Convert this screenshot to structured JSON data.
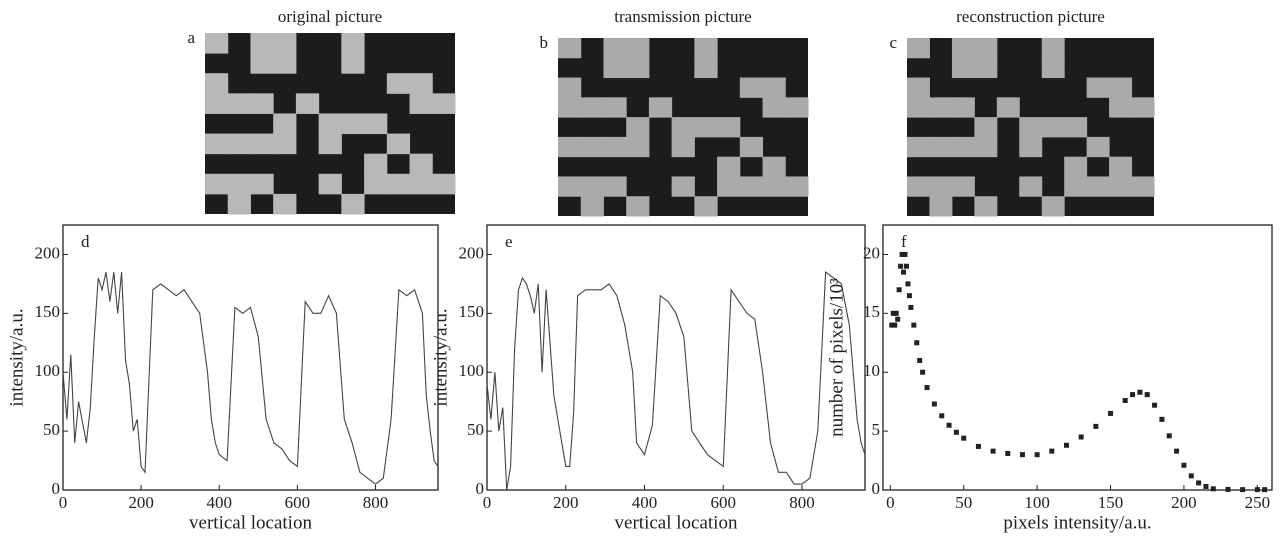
{
  "pictures": [
    {
      "label": "a",
      "title": "original picture"
    },
    {
      "label": "b",
      "title": "transmission picture"
    },
    {
      "label": "c",
      "title": "reconstruction picture"
    }
  ],
  "chart_data": [
    {
      "type": "line",
      "label": "d",
      "xlabel": "vertical location",
      "ylabel": "intensity/a.u.",
      "color": "#444",
      "xlim": [
        0,
        960
      ],
      "xticks": [
        0,
        200,
        400,
        600,
        800
      ],
      "ylim": [
        0,
        225
      ],
      "yticks": [
        0,
        50,
        100,
        150,
        200
      ],
      "x": [
        0,
        10,
        20,
        30,
        40,
        60,
        70,
        80,
        90,
        100,
        110,
        120,
        130,
        140,
        150,
        160,
        170,
        180,
        190,
        200,
        210,
        230,
        250,
        270,
        290,
        310,
        330,
        350,
        370,
        380,
        390,
        400,
        420,
        440,
        460,
        480,
        500,
        520,
        540,
        560,
        580,
        600,
        620,
        640,
        660,
        680,
        700,
        720,
        740,
        760,
        780,
        800,
        820,
        840,
        860,
        880,
        900,
        920,
        930,
        940,
        950,
        960
      ],
      "values": [
        100,
        60,
        115,
        40,
        75,
        40,
        70,
        130,
        180,
        170,
        185,
        160,
        185,
        150,
        185,
        110,
        90,
        50,
        60,
        20,
        15,
        170,
        175,
        170,
        165,
        170,
        160,
        150,
        100,
        60,
        40,
        30,
        25,
        155,
        150,
        155,
        130,
        60,
        40,
        35,
        25,
        20,
        160,
        150,
        150,
        165,
        150,
        60,
        40,
        15,
        10,
        5,
        10,
        60,
        170,
        165,
        170,
        150,
        80,
        50,
        25,
        20
      ]
    },
    {
      "type": "line",
      "label": "e",
      "xlabel": "vertical location",
      "ylabel": "intensity/a.u.",
      "color": "#444",
      "xlim": [
        0,
        960
      ],
      "xticks": [
        0,
        200,
        400,
        600,
        800
      ],
      "ylim": [
        0,
        225
      ],
      "yticks": [
        0,
        50,
        100,
        150,
        200
      ],
      "x": [
        0,
        10,
        20,
        30,
        40,
        50,
        60,
        70,
        80,
        90,
        100,
        110,
        120,
        130,
        140,
        150,
        170,
        190,
        200,
        210,
        220,
        230,
        250,
        270,
        290,
        310,
        330,
        350,
        370,
        380,
        400,
        420,
        440,
        460,
        480,
        500,
        520,
        540,
        560,
        580,
        600,
        620,
        640,
        660,
        680,
        700,
        720,
        740,
        760,
        780,
        800,
        820,
        840,
        860,
        880,
        900,
        920,
        930,
        940,
        950,
        960
      ],
      "values": [
        90,
        60,
        100,
        50,
        70,
        0,
        20,
        120,
        170,
        180,
        175,
        165,
        150,
        175,
        100,
        170,
        80,
        40,
        20,
        20,
        65,
        165,
        170,
        170,
        170,
        175,
        165,
        140,
        100,
        40,
        30,
        55,
        165,
        160,
        150,
        130,
        50,
        40,
        30,
        25,
        20,
        170,
        160,
        150,
        145,
        100,
        40,
        15,
        15,
        5,
        5,
        10,
        50,
        185,
        180,
        175,
        140,
        100,
        60,
        40,
        30
      ]
    },
    {
      "type": "scatter",
      "label": "f",
      "xlabel": "pixels intensity/a.u.",
      "ylabel": "number of pixels/10³",
      "color": "#222",
      "xlim": [
        -5,
        260
      ],
      "xticks": [
        0,
        50,
        100,
        150,
        200,
        250
      ],
      "ylim": [
        0,
        22.5
      ],
      "yticks": [
        0,
        5,
        10,
        15,
        20
      ],
      "x": [
        1,
        2,
        3,
        4,
        5,
        6,
        7,
        8,
        9,
        10,
        11,
        12,
        13,
        14,
        16,
        18,
        20,
        22,
        25,
        30,
        35,
        40,
        45,
        50,
        60,
        70,
        80,
        90,
        100,
        110,
        120,
        130,
        140,
        150,
        160,
        165,
        170,
        175,
        180,
        185,
        190,
        195,
        200,
        205,
        210,
        215,
        220,
        230,
        240,
        250,
        255
      ],
      "values": [
        14,
        15,
        14,
        15,
        14.5,
        17,
        19,
        20,
        18.5,
        20,
        19,
        17.5,
        16.5,
        15.5,
        14,
        12.5,
        11,
        10,
        8.7,
        7.3,
        6.3,
        5.5,
        4.9,
        4.4,
        3.7,
        3.3,
        3.1,
        3,
        3,
        3.3,
        3.8,
        4.5,
        5.4,
        6.5,
        7.6,
        8.1,
        8.3,
        8.1,
        7.2,
        6,
        4.6,
        3.3,
        2.1,
        1.2,
        0.6,
        0.3,
        0.1,
        0.05,
        0.03,
        0.03,
        0.03
      ]
    }
  ]
}
